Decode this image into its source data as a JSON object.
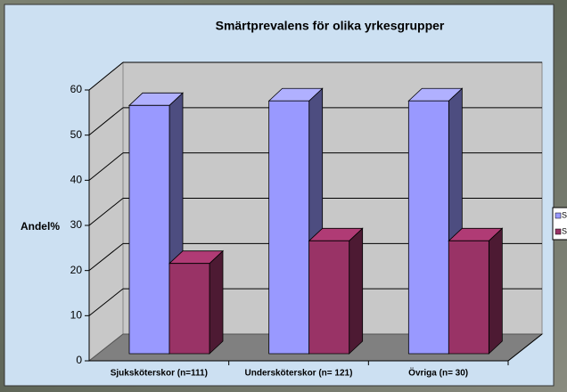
{
  "chart_data": {
    "type": "bar3d",
    "title": "Smärtprevalens för olika yrkesgrupper",
    "y_label": "Andel%",
    "categories": [
      "Sjuksköterskor (n=111)",
      "Undersköterskor (n= 121)",
      "Övriga (n= 30)"
    ],
    "series": [
      {
        "name": "S",
        "color": "#9999ff",
        "values": [
          55,
          56,
          56
        ]
      },
      {
        "name": "S",
        "color": "#993366",
        "values": [
          20,
          25,
          25
        ]
      }
    ],
    "ylim": [
      0,
      60
    ],
    "yticks": [
      0,
      10,
      20,
      30,
      40,
      50,
      60
    ],
    "grid": true,
    "legend": "right"
  }
}
